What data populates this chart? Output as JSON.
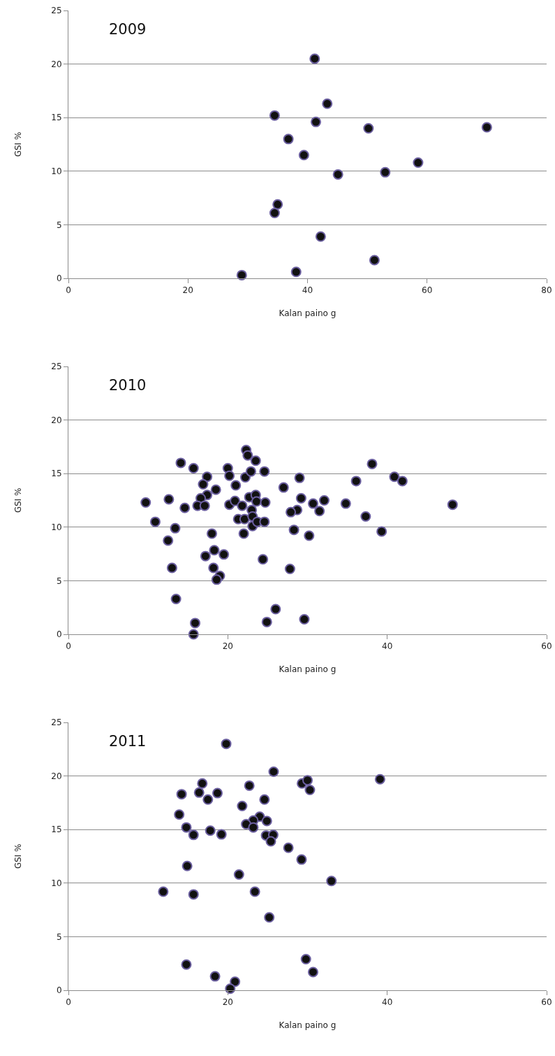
{
  "chart_data": [
    {
      "type": "scatter",
      "title": "2009",
      "xlabel": "Kalan paino g",
      "ylabel": "GSI %",
      "xlim": [
        0,
        80
      ],
      "xticks": [
        0,
        20,
        40,
        60,
        80
      ],
      "ylim": [
        0,
        25
      ],
      "yticks": [
        0,
        5,
        10,
        15,
        20,
        25
      ],
      "grid": "y",
      "marker": "circle",
      "legend": false,
      "series": [
        {
          "color": "#111111",
          "x": [
            41.2,
            43.3,
            34.5,
            41.4,
            50.2,
            70.0,
            36.8,
            39.4,
            45.1,
            53.0,
            58.5,
            35.0,
            34.5,
            42.2,
            51.2,
            29.0,
            38.1
          ],
          "values": [
            20.5,
            16.3,
            15.2,
            14.6,
            14.0,
            14.1,
            13.0,
            11.5,
            9.7,
            9.9,
            10.8,
            6.9,
            6.1,
            3.9,
            1.7,
            0.3,
            0.6
          ]
        }
      ]
    },
    {
      "type": "scatter",
      "title": "2010",
      "xlabel": "Kalan paino g",
      "ylabel": "GSI %",
      "xlim": [
        0,
        60
      ],
      "xticks": [
        0,
        20,
        40,
        60
      ],
      "ylim": [
        0,
        25
      ],
      "yticks": [
        0,
        5,
        10,
        15,
        20,
        25
      ],
      "grid": "y",
      "marker": "circle",
      "legend": false,
      "series": [
        {
          "color": "#111111",
          "x": [
            9.7,
            10.9,
            12.6,
            12.5,
            13.4,
            13.0,
            13.5,
            14.1,
            14.6,
            15.7,
            15.9,
            15.7,
            17.4,
            16.9,
            18.5,
            17.4,
            16.6,
            16.2,
            17.1,
            18.0,
            18.3,
            17.2,
            19.5,
            18.2,
            19.0,
            18.6,
            20.0,
            20.2,
            21.0,
            20.2,
            20.9,
            21.8,
            21.3,
            22.1,
            22.0,
            22.3,
            22.5,
            23.5,
            22.2,
            22.9,
            24.6,
            22.7,
            23.5,
            23.6,
            24.7,
            23.0,
            23.1,
            23.1,
            23.7,
            24.6,
            24.4,
            24.9,
            26.0,
            29.0,
            27.0,
            29.2,
            28.7,
            27.9,
            30.7,
            32.1,
            31.5,
            34.8,
            36.1,
            38.1,
            40.9,
            41.9,
            48.2,
            37.3,
            28.3,
            30.2,
            39.3,
            27.8,
            29.6
          ],
          "values": [
            12.3,
            10.5,
            12.6,
            8.75,
            9.9,
            6.2,
            3.3,
            16.0,
            11.8,
            15.5,
            1.05,
            0.0,
            14.7,
            14.0,
            13.5,
            13.0,
            12.7,
            12.0,
            12.0,
            9.4,
            7.85,
            7.3,
            7.45,
            6.2,
            5.45,
            5.1,
            15.5,
            14.8,
            13.9,
            12.1,
            12.45,
            12.0,
            10.75,
            10.75,
            9.4,
            17.2,
            16.7,
            16.2,
            14.65,
            15.2,
            15.2,
            12.8,
            13.0,
            12.4,
            12.3,
            11.6,
            11.0,
            10.1,
            10.5,
            10.5,
            7.0,
            1.15,
            2.35,
            14.6,
            13.7,
            12.7,
            11.6,
            11.4,
            12.2,
            12.5,
            11.5,
            12.2,
            14.3,
            15.9,
            14.7,
            14.3,
            12.1,
            11.0,
            9.75,
            9.2,
            9.6,
            6.1,
            1.4
          ]
        }
      ]
    },
    {
      "type": "scatter",
      "title": "2011",
      "xlabel": "Kalan paino g",
      "ylabel": "GSI %",
      "xlim": [
        0,
        60
      ],
      "xticks": [
        0,
        20,
        40,
        60
      ],
      "ylim": [
        0,
        25
      ],
      "yticks": [
        0,
        5,
        10,
        15,
        20,
        25
      ],
      "grid": "y",
      "marker": "circle",
      "legend": false,
      "series": [
        {
          "color": "#111111",
          "x": [
            19.8,
            25.75,
            29.3,
            30.0,
            30.3,
            16.8,
            22.7,
            14.2,
            16.4,
            18.7,
            17.5,
            24.6,
            21.8,
            13.9,
            24.0,
            23.2,
            24.9,
            22.3,
            23.2,
            14.8,
            15.7,
            17.8,
            19.2,
            24.8,
            25.7,
            25.4,
            27.6,
            29.25,
            14.9,
            21.4,
            33.0,
            11.9,
            15.7,
            23.4,
            25.2,
            14.8,
            29.8,
            30.7,
            18.4,
            20.9,
            20.3,
            39.1
          ],
          "values": [
            23.0,
            20.4,
            19.3,
            19.6,
            18.7,
            19.3,
            19.1,
            18.3,
            18.45,
            18.4,
            17.8,
            17.8,
            17.2,
            16.4,
            16.2,
            15.85,
            15.8,
            15.5,
            15.2,
            15.2,
            14.5,
            14.9,
            14.55,
            14.45,
            14.5,
            13.9,
            13.3,
            12.2,
            11.6,
            10.8,
            10.2,
            9.2,
            8.95,
            9.2,
            6.8,
            2.4,
            2.9,
            1.7,
            1.3,
            0.8,
            0.15,
            19.7
          ]
        }
      ]
    }
  ]
}
